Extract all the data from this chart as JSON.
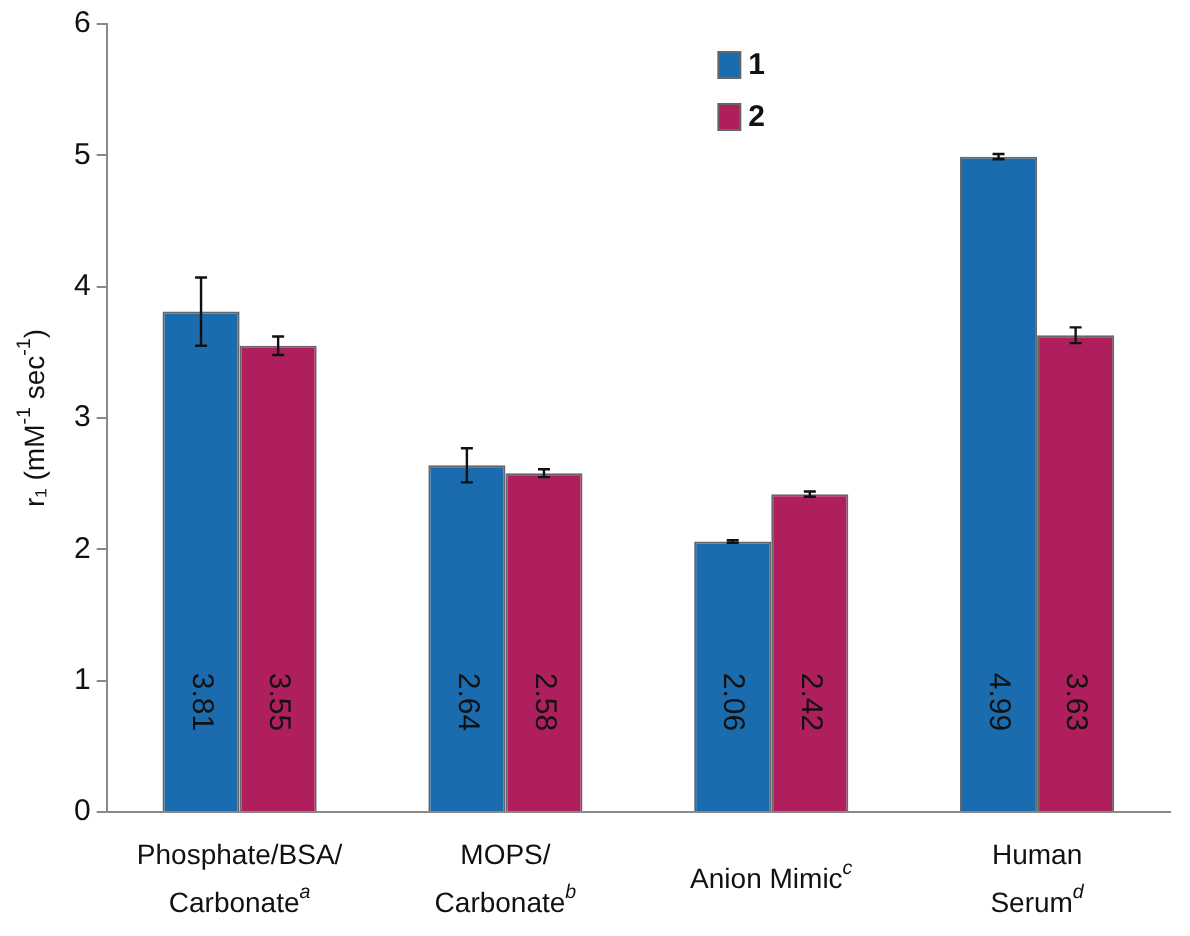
{
  "chart_data": {
    "type": "bar",
    "ylabel": "r₁ (mM$^{-1}$ sec$^{-1}$)",
    "categories": [
      "Phosphate/BSA/\nCarbonate$^{a}$",
      "MOPS/\nCarbonate$^{b}$",
      "Anion Mimic$^{c}$",
      "Human\nSerum$^{d}$"
    ],
    "series": [
      {
        "name": "1",
        "color": "#1b6cae",
        "values": [
          3.81,
          2.64,
          2.06,
          4.99
        ],
        "errors": [
          0.26,
          0.13,
          0.01,
          0.02
        ]
      },
      {
        "name": "2",
        "color": "#b01f5d",
        "values": [
          3.55,
          2.58,
          2.42,
          3.63
        ],
        "errors": [
          0.07,
          0.03,
          0.02,
          0.06
        ]
      }
    ],
    "ylim": [
      0,
      6
    ],
    "yticks": [
      0,
      1,
      2,
      3,
      4,
      5,
      6
    ],
    "grid": false,
    "legend": "top",
    "data_labels": true
  }
}
